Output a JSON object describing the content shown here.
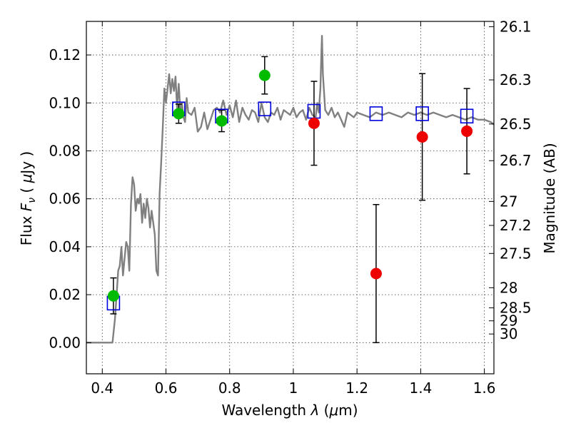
{
  "chart_data": {
    "type": "scatter",
    "xlabel": "Wavelength",
    "xlabel_symbol": "λ",
    "xlabel_unit_open": " (",
    "xlabel_unit_mu": "μ",
    "xlabel_unit_rest": "m)",
    "ylabel_prefix": "Flux",
    "ylabel_symbol": "F",
    "ylabel_subscript": "ν",
    "ylabel_unit_open": "( ",
    "ylabel_unit_mu": "μ",
    "ylabel_unit_rest": "Jy )",
    "y2label": "Magnitude (AB)",
    "xlim": [
      0.35,
      1.63
    ],
    "ylim": [
      -0.013,
      0.134
    ],
    "grid": true,
    "xticks": [
      0.4,
      0.6,
      0.8,
      1.0,
      1.2,
      1.4,
      1.6
    ],
    "xtick_labels": [
      "0.4",
      "0.6",
      "0.8",
      "1",
      "1.2",
      "1.4",
      "1.6"
    ],
    "yticks": [
      0.0,
      0.02,
      0.04,
      0.06,
      0.08,
      0.1,
      0.12
    ],
    "ytick_labels": [
      "0.00",
      "0.02",
      "0.04",
      "0.06",
      "0.08",
      "0.10",
      "0.12"
    ],
    "y2ticks": [
      {
        "flux": 0.1318,
        "label": "26.1"
      },
      {
        "flux": 0.1096,
        "label": "26.3"
      },
      {
        "flux": 0.0912,
        "label": "26.5"
      },
      {
        "flux": 0.0759,
        "label": "26.7"
      },
      {
        "flux": 0.0589,
        "label": "27"
      },
      {
        "flux": 0.0489,
        "label": "27.2"
      },
      {
        "flux": 0.0372,
        "label": "27.5"
      },
      {
        "flux": 0.0229,
        "label": "28"
      },
      {
        "flux": 0.0145,
        "label": "28.5"
      },
      {
        "flux": 0.0091,
        "label": "29"
      },
      {
        "flux": 0.0036,
        "label": "30"
      }
    ],
    "series": [
      {
        "kind": "model_spectrum",
        "color": "#808080",
        "x": [
          0.35,
          0.43,
          0.432,
          0.44,
          0.445,
          0.45,
          0.455,
          0.46,
          0.465,
          0.47,
          0.475,
          0.48,
          0.485,
          0.49,
          0.495,
          0.5,
          0.505,
          0.51,
          0.515,
          0.52,
          0.525,
          0.53,
          0.535,
          0.54,
          0.545,
          0.55,
          0.555,
          0.56,
          0.565,
          0.57,
          0.575,
          0.58,
          0.585,
          0.59,
          0.595,
          0.6,
          0.605,
          0.61,
          0.615,
          0.62,
          0.625,
          0.63,
          0.635,
          0.64,
          0.645,
          0.65,
          0.655,
          0.66,
          0.665,
          0.67,
          0.68,
          0.69,
          0.7,
          0.71,
          0.72,
          0.73,
          0.74,
          0.75,
          0.76,
          0.77,
          0.78,
          0.79,
          0.8,
          0.81,
          0.82,
          0.83,
          0.84,
          0.85,
          0.86,
          0.87,
          0.88,
          0.89,
          0.9,
          0.91,
          0.92,
          0.93,
          0.94,
          0.95,
          0.96,
          0.97,
          0.98,
          0.99,
          1.0,
          1.01,
          1.02,
          1.03,
          1.04,
          1.05,
          1.06,
          1.07,
          1.075,
          1.08,
          1.085,
          1.088,
          1.09,
          1.093,
          1.1,
          1.11,
          1.12,
          1.13,
          1.14,
          1.15,
          1.16,
          1.17,
          1.18,
          1.19,
          1.2,
          1.22,
          1.24,
          1.26,
          1.28,
          1.3,
          1.32,
          1.34,
          1.36,
          1.38,
          1.4,
          1.42,
          1.44,
          1.46,
          1.48,
          1.5,
          1.52,
          1.54,
          1.56,
          1.58,
          1.6,
          1.62,
          1.63
        ],
        "values": [
          0.0,
          0.0,
          0.0,
          0.01,
          0.02,
          0.03,
          0.032,
          0.04,
          0.028,
          0.035,
          0.042,
          0.04,
          0.03,
          0.058,
          0.069,
          0.066,
          0.055,
          0.06,
          0.058,
          0.062,
          0.05,
          0.058,
          0.052,
          0.06,
          0.056,
          0.048,
          0.055,
          0.05,
          0.045,
          0.03,
          0.028,
          0.062,
          0.075,
          0.09,
          0.106,
          0.1,
          0.106,
          0.112,
          0.104,
          0.11,
          0.105,
          0.111,
          0.098,
          0.108,
          0.097,
          0.1,
          0.094,
          0.092,
          0.102,
          0.096,
          0.095,
          0.098,
          0.088,
          0.09,
          0.096,
          0.089,
          0.093,
          0.097,
          0.098,
          0.096,
          0.101,
          0.095,
          0.099,
          0.094,
          0.101,
          0.092,
          0.098,
          0.095,
          0.093,
          0.097,
          0.096,
          0.092,
          0.1,
          0.094,
          0.092,
          0.096,
          0.095,
          0.098,
          0.093,
          0.097,
          0.096,
          0.095,
          0.098,
          0.094,
          0.096,
          0.097,
          0.093,
          0.098,
          0.095,
          0.094,
          0.1,
          0.096,
          0.106,
          0.12,
          0.128,
          0.112,
          0.097,
          0.095,
          0.098,
          0.094,
          0.096,
          0.093,
          0.09,
          0.096,
          0.095,
          0.094,
          0.096,
          0.095,
          0.094,
          0.096,
          0.095,
          0.096,
          0.095,
          0.094,
          0.096,
          0.095,
          0.096,
          0.095,
          0.096,
          0.095,
          0.094,
          0.095,
          0.094,
          0.093,
          0.094,
          0.093,
          0.093,
          0.092,
          0.091
        ]
      },
      {
        "kind": "model_photometry",
        "marker": "open-square",
        "color": "#0000dd",
        "x": [
          0.435,
          0.64,
          0.775,
          0.91,
          1.065,
          1.26,
          1.405,
          1.545
        ],
        "values": [
          0.0165,
          0.0975,
          0.0945,
          0.0975,
          0.0965,
          0.0955,
          0.0955,
          0.0945
        ]
      },
      {
        "kind": "observed_optical",
        "marker": "filled-circle",
        "color": "#00bb00",
        "x": [
          0.435,
          0.64,
          0.775,
          0.91
        ],
        "values": [
          0.0195,
          0.0955,
          0.0925,
          0.1115
        ],
        "err": [
          0.0075,
          0.004,
          0.0045,
          0.0078
        ]
      },
      {
        "kind": "observed_infrared",
        "marker": "filled-circle",
        "color": "#ee0000",
        "x": [
          1.065,
          1.26,
          1.405,
          1.545
        ],
        "values": [
          0.0915,
          0.0288,
          0.0858,
          0.0882
        ],
        "err": [
          0.0175,
          0.0288,
          0.0264,
          0.0178
        ]
      }
    ]
  }
}
